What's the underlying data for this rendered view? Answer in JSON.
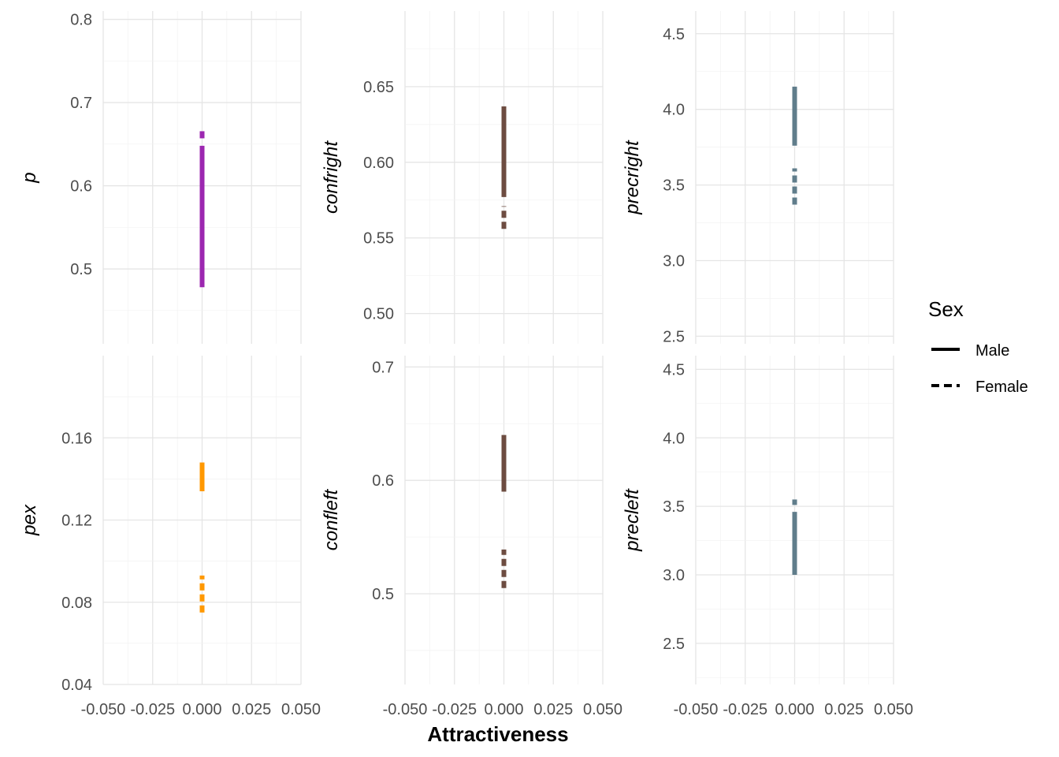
{
  "chart_data": {
    "type": "line",
    "xlabel": "Attractiveness",
    "x_ticks": [
      "-0.050",
      "-0.025",
      "0.000",
      "0.025",
      "0.050"
    ],
    "xlim": [
      -0.05,
      0.05
    ],
    "grid": true,
    "legend": {
      "title": "Sex",
      "position": "right",
      "entries": [
        {
          "label": "Male",
          "linetype": "solid"
        },
        {
          "label": "Female",
          "linetype": "dashed"
        }
      ]
    },
    "panels": [
      {
        "ylabel": "p",
        "color": "#9C27B0",
        "ylim": [
          0.41,
          0.81
        ],
        "y_ticks": [
          0.5,
          0.6,
          0.7,
          0.8
        ],
        "y_tick_labels": [
          "0.5",
          "0.6",
          "0.7",
          "0.8"
        ],
        "series": [
          {
            "name": "Male",
            "x": [
              0,
              0
            ],
            "y": [
              0.478,
              0.648
            ]
          },
          {
            "name": "Female",
            "x": [
              0,
              0
            ],
            "y": [
              0.657,
              0.667
            ]
          }
        ]
      },
      {
        "ylabel": "confright",
        "color": "#6D4C41",
        "ylim": [
          0.48,
          0.7
        ],
        "y_ticks": [
          0.5,
          0.55,
          0.6,
          0.65
        ],
        "y_tick_labels": [
          "0.50",
          "0.55",
          "0.60",
          "0.65"
        ],
        "series": [
          {
            "name": "Male",
            "x": [
              0,
              0
            ],
            "y": [
              0.577,
              0.637
            ]
          },
          {
            "name": "Female",
            "x": [
              0,
              0
            ],
            "y": [
              0.556,
              0.571
            ]
          }
        ]
      },
      {
        "ylabel": "precright",
        "color": "#607D8B",
        "ylim": [
          2.45,
          4.65
        ],
        "y_ticks": [
          2.5,
          3.0,
          3.5,
          4.0,
          4.5
        ],
        "y_tick_labels": [
          "2.5",
          "3.0",
          "3.5",
          "4.0",
          "4.5"
        ],
        "series": [
          {
            "name": "Male",
            "x": [
              0,
              0
            ],
            "y": [
              3.76,
              4.15
            ]
          },
          {
            "name": "Female",
            "x": [
              0,
              0
            ],
            "y": [
              3.37,
              3.61
            ]
          }
        ]
      },
      {
        "ylabel": "pex",
        "color": "#FF9800",
        "ylim": [
          0.04,
          0.2
        ],
        "y_ticks": [
          0.04,
          0.08,
          0.12,
          0.16
        ],
        "y_tick_labels": [
          "0.04",
          "0.08",
          "0.12",
          "0.16"
        ],
        "series": [
          {
            "name": "Male",
            "x": [
              0,
              0
            ],
            "y": [
              0.134,
              0.148
            ]
          },
          {
            "name": "Female",
            "x": [
              0,
              0
            ],
            "y": [
              0.075,
              0.093
            ]
          }
        ]
      },
      {
        "ylabel": "confleft",
        "color": "#6D4C41",
        "ylim": [
          0.42,
          0.71
        ],
        "y_ticks": [
          0.5,
          0.6,
          0.7
        ],
        "y_tick_labels": [
          "0.5",
          "0.6",
          "0.7"
        ],
        "series": [
          {
            "name": "Male",
            "x": [
              0,
              0
            ],
            "y": [
              0.59,
              0.64
            ]
          },
          {
            "name": "Female",
            "x": [
              0,
              0
            ],
            "y": [
              0.505,
              0.539
            ]
          }
        ]
      },
      {
        "ylabel": "precleft",
        "color": "#607D8B",
        "ylim": [
          2.2,
          4.6
        ],
        "y_ticks": [
          2.5,
          3.0,
          3.5,
          4.0,
          4.5
        ],
        "y_tick_labels": [
          "2.5",
          "3.0",
          "3.5",
          "4.0",
          "4.5"
        ],
        "series": [
          {
            "name": "Male",
            "x": [
              0,
              0
            ],
            "y": [
              3.0,
              3.46
            ]
          },
          {
            "name": "Female",
            "x": [
              0,
              0
            ],
            "y": [
              3.51,
              3.55
            ]
          }
        ]
      }
    ]
  }
}
